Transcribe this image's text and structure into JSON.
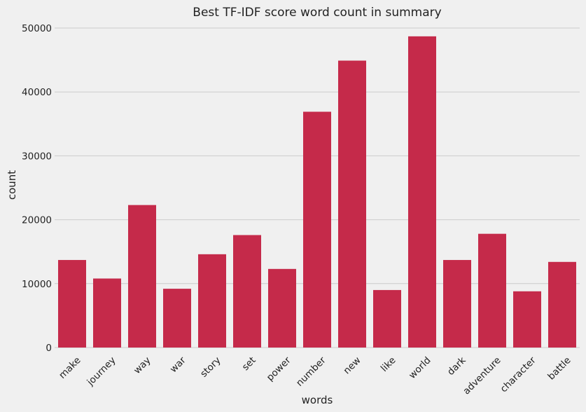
{
  "chart_data": {
    "type": "bar",
    "title": "Best TF-IDF score word count in summary",
    "xlabel": "words",
    "ylabel": "count",
    "categories": [
      "make",
      "journey",
      "way",
      "war",
      "story",
      "set",
      "power",
      "number",
      "new",
      "like",
      "world",
      "dark",
      "adventure",
      "character",
      "battle"
    ],
    "values": [
      13700,
      10800,
      22300,
      9200,
      14600,
      17600,
      12300,
      36900,
      44900,
      9000,
      48700,
      13700,
      17800,
      8800,
      13400
    ],
    "ylim": [
      0,
      50000
    ],
    "yticks": [
      0,
      10000,
      20000,
      30000,
      40000,
      50000
    ],
    "grid": "horizontal",
    "legend": "none",
    "colors": {
      "bar": "#c52a4a",
      "background": "#f0f0f0",
      "grid": "#cbcbcb",
      "text": "#222222"
    }
  }
}
